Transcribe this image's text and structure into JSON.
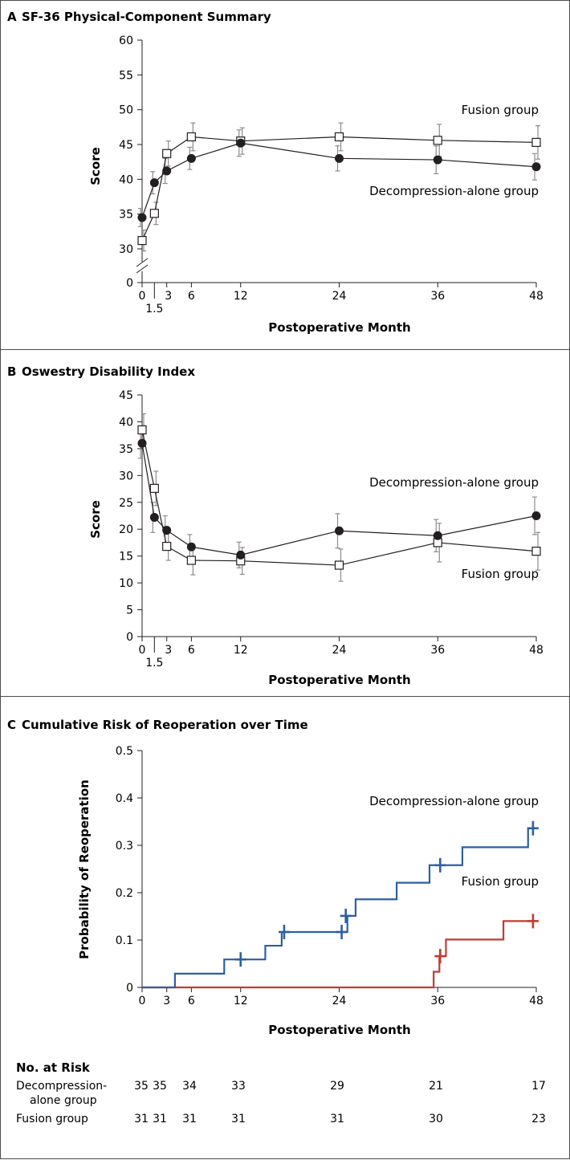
{
  "chart_data": [
    {
      "panel_letter": "A",
      "title": "SF-36 Physical-Component Summary",
      "type": "line",
      "xlabel": "Postoperative Month",
      "ylabel": "Score",
      "xticks": [
        "0",
        "1.5",
        "3",
        "6",
        "12",
        "24",
        "36",
        "48"
      ],
      "yticks": [
        "0",
        "30",
        "35",
        "40",
        "45",
        "50",
        "55",
        "60"
      ],
      "ylim": [
        30,
        60
      ],
      "axis_break": true,
      "x": [
        0,
        1.5,
        3,
        6,
        12,
        24,
        36,
        48
      ],
      "series": [
        {
          "name": "Fusion group",
          "marker": "open-square",
          "values": [
            31.2,
            35.1,
            43.7,
            46.1,
            45.5,
            46.1,
            45.6,
            45.3
          ],
          "errors": [
            1.5,
            1.6,
            1.8,
            2.0,
            1.9,
            2.0,
            2.3,
            2.4
          ]
        },
        {
          "name": "Decompression-alone group",
          "marker": "filled-circle",
          "values": [
            34.5,
            39.5,
            41.2,
            43.0,
            45.2,
            43.0,
            42.8,
            41.8
          ],
          "errors": [
            1.3,
            1.6,
            1.8,
            1.6,
            1.9,
            1.8,
            2.0,
            1.9
          ]
        }
      ]
    },
    {
      "panel_letter": "B",
      "title": "Oswestry Disability Index",
      "type": "line",
      "xlabel": "Postoperative Month",
      "ylabel": "Score",
      "xticks": [
        "0",
        "1.5",
        "3",
        "6",
        "12",
        "24",
        "36",
        "48"
      ],
      "yticks": [
        "0",
        "5",
        "10",
        "15",
        "20",
        "25",
        "30",
        "35",
        "40",
        "45"
      ],
      "ylim": [
        0,
        45
      ],
      "x": [
        0,
        1.5,
        3,
        6,
        12,
        24,
        36,
        48
      ],
      "series": [
        {
          "name": "Fusion group",
          "marker": "open-square",
          "values": [
            38.5,
            27.6,
            16.8,
            14.2,
            14.1,
            13.3,
            17.5,
            15.9
          ],
          "errors": [
            3.0,
            3.2,
            2.6,
            2.7,
            2.5,
            3.0,
            3.6,
            3.5
          ]
        },
        {
          "name": "Decompression-alone group",
          "marker": "filled-circle",
          "values": [
            36.0,
            22.2,
            19.8,
            16.7,
            15.2,
            19.7,
            18.8,
            22.5
          ],
          "errors": [
            2.8,
            2.8,
            2.7,
            2.3,
            2.4,
            3.2,
            3.0,
            3.5
          ]
        }
      ]
    },
    {
      "panel_letter": "C",
      "title": "Cumulative Risk of Reoperation over Time",
      "type": "line",
      "xlabel": "Postoperative Month",
      "ylabel": "Probability of Reoperation",
      "xticks": [
        "0",
        "3",
        "6",
        "12",
        "24",
        "36",
        "48"
      ],
      "yticks": [
        "0",
        "0.1",
        "0.2",
        "0.3",
        "0.4",
        "0.5"
      ],
      "ylim": [
        0,
        0.5
      ],
      "xlim": [
        0,
        48
      ],
      "series": [
        {
          "name": "Decompression-alone group",
          "color": "#2d5fa4",
          "steps": [
            [
              0,
              0
            ],
            [
              4,
              0.029
            ],
            [
              10,
              0.059
            ],
            [
              15,
              0.088
            ],
            [
              17,
              0.117
            ],
            [
              25,
              0.151
            ],
            [
              26,
              0.186
            ],
            [
              31,
              0.221
            ],
            [
              35,
              0.258
            ],
            [
              39,
              0.296
            ],
            [
              47,
              0.336
            ],
            [
              48,
              0.336
            ]
          ],
          "censored": [
            [
              12,
              0.059
            ],
            [
              17.3,
              0.117
            ],
            [
              24.3,
              0.117
            ],
            [
              24.8,
              0.151
            ],
            [
              36.3,
              0.258
            ],
            [
              47.6,
              0.336
            ]
          ]
        },
        {
          "name": "Fusion group",
          "color": "#c23b2e",
          "steps": [
            [
              0,
              0
            ],
            [
              35.5,
              0.033
            ],
            [
              36.2,
              0.066
            ],
            [
              37,
              0.101
            ],
            [
              44,
              0.14
            ],
            [
              48,
              0.14
            ]
          ],
          "censored": [
            [
              36.3,
              0.066
            ],
            [
              47.6,
              0.14
            ]
          ]
        }
      ]
    }
  ],
  "risk_table": {
    "heading": "No. at Risk",
    "rows": [
      {
        "label": "Decompression-",
        "label2": "alone group",
        "values": [
          "35",
          "35",
          "34",
          "33",
          "29",
          "21",
          "17"
        ]
      },
      {
        "label": "Fusion group",
        "values": [
          "31",
          "31",
          "31",
          "31",
          "31",
          "30",
          "23"
        ]
      }
    ]
  },
  "colors": {
    "text": "#231f20",
    "frame": "#4d4d4d",
    "error_bars": "#8c8c8c",
    "decompression": "#2d5fa4",
    "fusion": "#c23b2e"
  }
}
